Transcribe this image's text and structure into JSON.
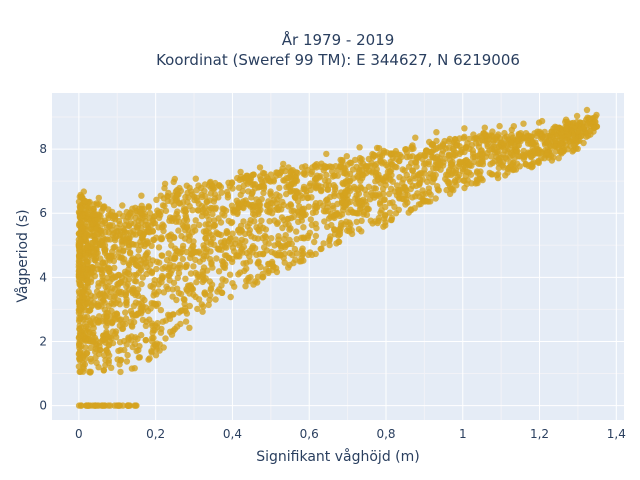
{
  "chart_data": {
    "type": "scatter",
    "title": [
      "År 1979 - 2019",
      "Koordinat (Sweref 99 TM): E 344627, N 6219006"
    ],
    "xlabel": "Signifikant våghöjd (m)",
    "ylabel": "Vågperiod (s)",
    "xlim": [
      -0.07,
      1.42
    ],
    "ylim": [
      -0.45,
      9.75
    ],
    "x_ticks": [
      0,
      0.2,
      0.4,
      0.6,
      0.8,
      1,
      1.2,
      1.4
    ],
    "x_tick_labels": [
      "0",
      "0,2",
      "0,4",
      "0,6",
      "0,8",
      "1",
      "1,2",
      "1,4"
    ],
    "y_ticks": [
      0,
      2,
      4,
      6,
      8
    ],
    "y_tick_labels": [
      "0",
      "2",
      "4",
      "6",
      "8"
    ],
    "grid": true,
    "legend": "none",
    "marker_color": "#d4a21e",
    "plot_background": "#e5ecf6",
    "series": [
      {
        "x": [
          0.0,
          0.05,
          0.1,
          0.15,
          0.2,
          0.25,
          0.3,
          0.35,
          0.4,
          0.45,
          0.5,
          0.55,
          0.6,
          0.65,
          0.7,
          0.75,
          0.8,
          0.85,
          0.9,
          0.95,
          1.0,
          1.05,
          1.1,
          1.15,
          1.2,
          1.25,
          1.3,
          1.35
        ],
        "y_min": [
          1.0,
          1.0,
          1.0,
          1.1,
          1.5,
          2.0,
          2.5,
          3.0,
          3.4,
          3.7,
          4.0,
          4.3,
          4.6,
          4.9,
          5.2,
          5.4,
          5.6,
          5.9,
          6.2,
          6.4,
          6.7,
          6.9,
          7.1,
          7.3,
          7.5,
          7.7,
          8.0,
          8.6
        ],
        "y_max": [
          6.6,
          6.3,
          6.0,
          6.2,
          6.5,
          6.8,
          6.9,
          7.0,
          7.1,
          7.2,
          7.3,
          7.4,
          7.5,
          7.6,
          7.7,
          7.8,
          7.9,
          8.0,
          8.2,
          8.3,
          8.4,
          8.5,
          8.5,
          8.5,
          8.6,
          8.7,
          8.9,
          9.1
        ]
      }
    ],
    "zero_period_points": {
      "x_min": 0.0,
      "x_max": 0.15,
      "y": 0
    }
  }
}
